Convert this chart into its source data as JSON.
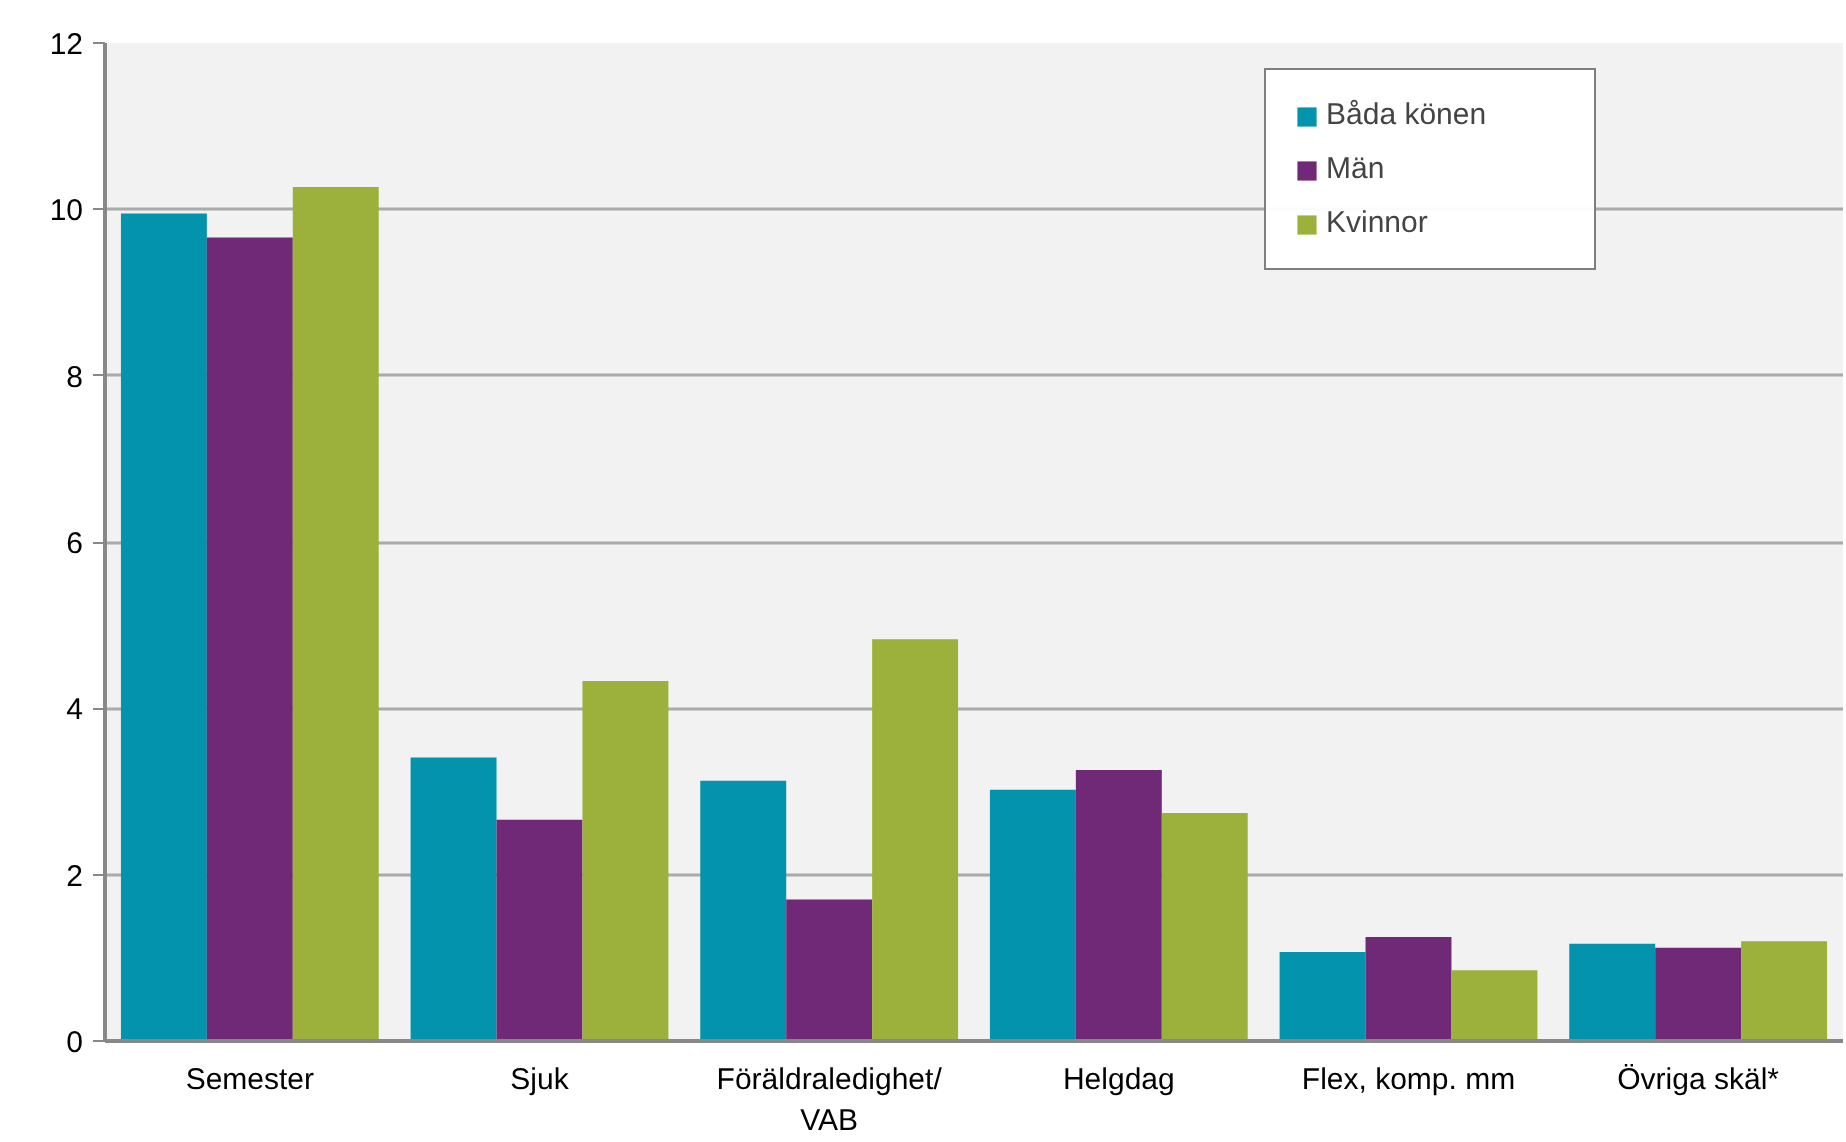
{
  "chart_data": {
    "type": "bar",
    "categories": [
      "Semester",
      "Sjuk",
      "Föräldraledighet/\nVAB",
      "Helgdag",
      "Flex, komp. mm",
      "Övriga skäl*"
    ],
    "series": [
      {
        "name": "Båda könen",
        "color": "#0493ad",
        "values": [
          9.95,
          3.41,
          3.13,
          3.02,
          1.07,
          1.17
        ]
      },
      {
        "name": "Män",
        "color": "#6f2977",
        "values": [
          9.66,
          2.66,
          1.7,
          3.26,
          1.25,
          1.12
        ]
      },
      {
        "name": "Kvinnor",
        "color": "#9bb13c",
        "values": [
          10.27,
          4.33,
          4.83,
          2.74,
          0.85,
          1.2
        ]
      }
    ],
    "ylim": [
      0,
      12
    ],
    "yticks": [
      0,
      2,
      4,
      6,
      8,
      10,
      12
    ],
    "grid": "y",
    "legend": "top right"
  }
}
